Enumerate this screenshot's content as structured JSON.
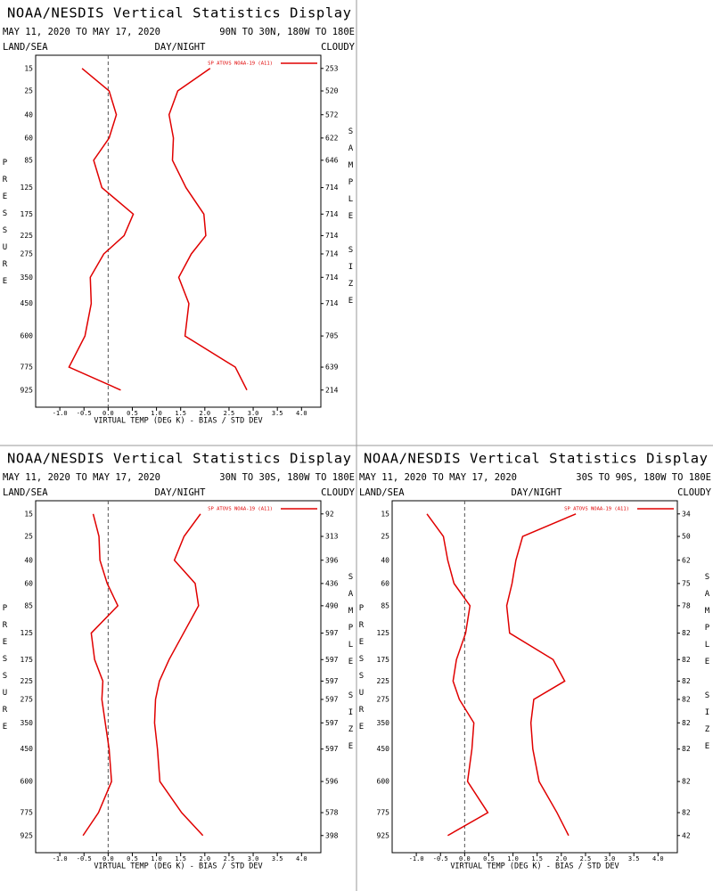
{
  "chart_data": [
    {
      "type": "line",
      "title": "NOAA/NESDIS Vertical Statistics Display",
      "date_range": "MAY 11, 2020 TO MAY 17, 2020",
      "region": "90N TO 30N, 180W TO 180E",
      "left_header": "LAND/SEA",
      "center_header": "DAY/NIGHT",
      "right_header": "CLOUDY",
      "ylabel": "PRESSURE",
      "y2label": "SAMPLE SIZE",
      "xlabel": "VIRTUAL TEMP (DEG K) - BIAS / STD DEV",
      "legend": "SP ATOVS NOAA-19 (A11)",
      "legend_position": "upper right",
      "color": "#e00000",
      "y_scale": "pressure",
      "xlim": [
        -1.5,
        4.4
      ],
      "ylim": [
        10.7,
        1050
      ],
      "xticks": [
        {
          "value": -1,
          "label": "-1.0"
        },
        {
          "value": -0.5,
          "label": "-0.5"
        },
        {
          "value": 0,
          "label": "0.0"
        },
        0.5,
        {
          "value": 1,
          "label": "1.0"
        },
        1.5,
        {
          "value": 2,
          "label": "2.0"
        },
        2.5,
        {
          "value": 3,
          "label": "3.0"
        },
        3.5,
        {
          "value": 4,
          "label": "4.0"
        }
      ],
      "y": [
        15,
        25,
        40,
        60,
        85,
        125,
        175,
        225,
        275,
        350,
        450,
        600,
        775,
        925
      ],
      "sample_size": [
        253,
        520,
        572,
        622,
        646,
        714,
        714,
        714,
        714,
        714,
        714,
        705,
        639,
        214
      ],
      "series": [
        {
          "name": "BIAS",
          "values": [
            -0.54,
            0.02,
            0.17,
            0.02,
            -0.3,
            -0.13,
            0.52,
            0.33,
            -0.09,
            -0.37,
            -0.35,
            -0.48,
            -0.81,
            0.26
          ]
        },
        {
          "name": "STD DEV",
          "values": [
            2.11,
            1.44,
            1.26,
            1.35,
            1.33,
            1.61,
            1.98,
            2.02,
            1.72,
            1.46,
            1.67,
            1.59,
            2.63,
            2.87
          ]
        }
      ]
    },
    {
      "type": "line",
      "title": "NOAA/NESDIS Vertical Statistics Display",
      "date_range": "MAY 11, 2020 TO MAY 17, 2020",
      "region": "30N TO 30S, 180W TO 180E",
      "left_header": "LAND/SEA",
      "center_header": "DAY/NIGHT",
      "right_header": "CLOUDY",
      "ylabel": "PRESSURE",
      "y2label": "SAMPLE SIZE",
      "xlabel": "VIRTUAL TEMP (DEG K) - BIAS / STD DEV",
      "legend": "SP ATOVS NOAA-19 (A11)",
      "legend_position": "upper right",
      "color": "#e00000",
      "y_scale": "pressure",
      "xlim": [
        -1.5,
        4.4
      ],
      "ylim": [
        10.7,
        1050
      ],
      "xticks": [
        {
          "value": -1,
          "label": "-1.0"
        },
        {
          "value": -0.5,
          "label": "-0.5"
        },
        {
          "value": 0,
          "label": "0.0"
        },
        0.5,
        {
          "value": 1,
          "label": "1.0"
        },
        1.5,
        {
          "value": 2,
          "label": "2.0"
        },
        2.5,
        {
          "value": 3,
          "label": "3.0"
        },
        3.5,
        {
          "value": 4,
          "label": "4.0"
        }
      ],
      "y": [
        15,
        25,
        40,
        60,
        85,
        125,
        175,
        225,
        275,
        350,
        450,
        600,
        775,
        925
      ],
      "sample_size": [
        92,
        313,
        396,
        436,
        490,
        597,
        597,
        597,
        597,
        597,
        597,
        596,
        578,
        398
      ],
      "series": [
        {
          "name": "BIAS",
          "values": [
            -0.31,
            -0.19,
            -0.17,
            -0.02,
            0.2,
            -0.35,
            -0.28,
            -0.11,
            -0.13,
            -0.06,
            0.02,
            0.07,
            -0.2,
            -0.52
          ]
        },
        {
          "name": "STD DEV",
          "values": [
            1.91,
            1.57,
            1.37,
            1.8,
            1.87,
            1.56,
            1.26,
            1.06,
            0.98,
            0.96,
            1.02,
            1.07,
            1.52,
            1.96
          ]
        }
      ]
    },
    {
      "type": "line",
      "title": "NOAA/NESDIS Vertical Statistics Display",
      "date_range": "MAY 11, 2020 TO MAY 17, 2020",
      "region": "30S TO 90S, 180W TO 180E",
      "left_header": "LAND/SEA",
      "center_header": "DAY/NIGHT",
      "right_header": "CLOUDY",
      "ylabel": "PRESSURE",
      "y2label": "SAMPLE SIZE",
      "xlabel": "VIRTUAL TEMP (DEG K) - BIAS / STD DEV",
      "legend": "SP ATOVS NOAA-19 (A11)",
      "legend_position": "upper right",
      "color": "#e00000",
      "y_scale": "pressure",
      "xlim": [
        -1.5,
        4.4
      ],
      "ylim": [
        10.7,
        1050
      ],
      "xticks": [
        {
          "value": -1,
          "label": "-1.0"
        },
        {
          "value": -0.5,
          "label": "-0.5"
        },
        {
          "value": 0,
          "label": "0.0"
        },
        0.5,
        {
          "value": 1,
          "label": "1.0"
        },
        1.5,
        {
          "value": 2,
          "label": "2.0"
        },
        2.5,
        {
          "value": 3,
          "label": "3.0"
        },
        3.5,
        {
          "value": 4,
          "label": "4.0"
        }
      ],
      "y": [
        15,
        25,
        40,
        60,
        85,
        125,
        175,
        225,
        275,
        350,
        450,
        600,
        775,
        925
      ],
      "sample_size": [
        34,
        50,
        62,
        75,
        78,
        82,
        82,
        82,
        82,
        82,
        82,
        82,
        82,
        42
      ],
      "series": [
        {
          "name": "BIAS",
          "values": [
            -0.78,
            -0.44,
            -0.35,
            -0.22,
            0.11,
            0.02,
            -0.17,
            -0.24,
            -0.11,
            0.19,
            0.15,
            0.06,
            0.48,
            -0.35
          ]
        },
        {
          "name": "STD DEV",
          "values": [
            2.3,
            1.2,
            1.06,
            0.98,
            0.87,
            0.93,
            1.83,
            2.07,
            1.43,
            1.37,
            1.41,
            1.54,
            1.91,
            2.15
          ]
        }
      ]
    }
  ]
}
